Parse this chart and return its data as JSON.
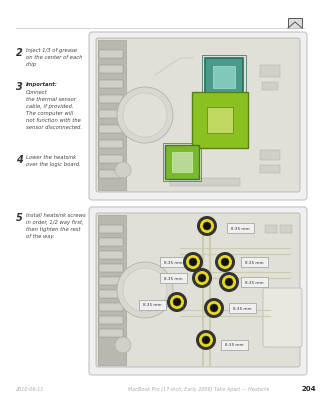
{
  "page_bg": "#ffffff",
  "light_gray": "#aaaaaa",
  "footer_text_left": "2010-06-11",
  "footer_text_center": "MacBook Pro (17-inch, Early 2009) Take Apart — Heatsink",
  "footer_page": "204",
  "step2_text": "Inject 1/3 of grease\non the center of each\nchip",
  "step3_text_bold": "Important:",
  "step3_text": "Connect\nthe thermal sensor\ncable, if provided.\nThe computer will\nnot function with the\nsensor disconnected.",
  "step4_text": "Lower the heatsink\nover the logic board.",
  "step5_text": "Install heatsink screws\nin order, 1/2 way first,\nthen tighten the rest\nof the way.",
  "chip_teal_color": "#4a9a8a",
  "chip_teal_border": "#2a6a5a",
  "chip_teal_inner": "#80c8bc",
  "chip_green_color": "#7ab830",
  "chip_green_border": "#4a7820",
  "chip_diamond_color": "#8ac020",
  "chip_diamond_border": "#5a8010",
  "chip_diamond_inner": "#c0d860",
  "board_bg": "#e8e8e0",
  "board_border": "#999999",
  "left_panel_bg": "#c0c0b8",
  "connector_bg": "#d0d0c8",
  "screw_yellow": "#e8d820",
  "screw_dark": "#222222",
  "label_bg": "#f0f0f0",
  "label_border": "#888888"
}
